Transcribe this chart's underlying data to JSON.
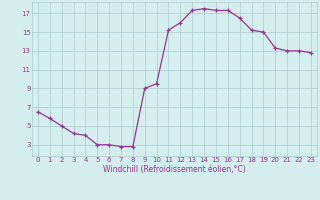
{
  "x": [
    0,
    1,
    2,
    3,
    4,
    5,
    6,
    7,
    8,
    9,
    10,
    11,
    12,
    13,
    14,
    15,
    16,
    17,
    18,
    19,
    20,
    21,
    22,
    23
  ],
  "y": [
    6.5,
    5.8,
    5.0,
    4.2,
    4.0,
    3.0,
    3.0,
    2.8,
    2.8,
    9.0,
    9.5,
    15.2,
    16.0,
    17.3,
    17.5,
    17.3,
    17.3,
    16.5,
    15.2,
    15.0,
    13.3,
    13.0,
    13.0,
    12.8
  ],
  "xlabel": "Windchill (Refroidissement éolien,°C)",
  "xlim": [
    -0.5,
    23.5
  ],
  "ylim": [
    1.8,
    18.2
  ],
  "yticks": [
    3,
    5,
    7,
    9,
    11,
    13,
    15,
    17
  ],
  "xticks": [
    0,
    1,
    2,
    3,
    4,
    5,
    6,
    7,
    8,
    9,
    10,
    11,
    12,
    13,
    14,
    15,
    16,
    17,
    18,
    19,
    20,
    21,
    22,
    23
  ],
  "line_color": "#993399",
  "marker": "+",
  "bg_color": "#d4eeee",
  "grid_color": "#aacccc",
  "tick_label_color": "#993399",
  "xlabel_color": "#993399",
  "tick_fontsize": 5.0,
  "xlabel_fontsize": 5.5,
  "marker_size": 3.5,
  "linewidth": 0.9
}
